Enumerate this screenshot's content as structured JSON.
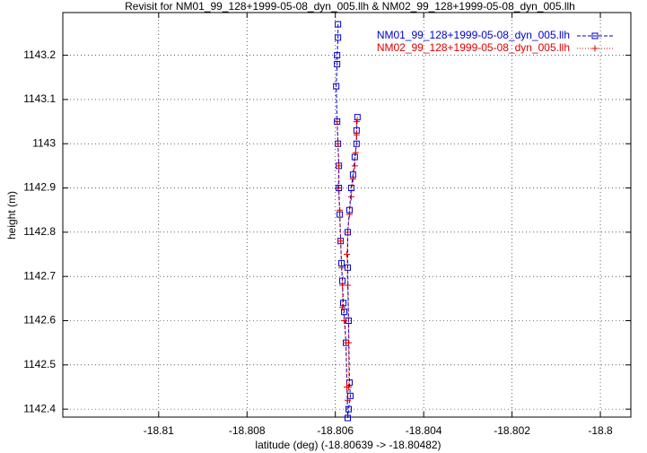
{
  "chart_data": {
    "type": "line",
    "title": "Revisit for NM01_99_128+1999-05-08_dyn_005.llh & NM02_99_128+1999-05-08_dyn_005.llh",
    "x_label": "latitude (deg) (-18.80639 -> -18.80482)",
    "y_label": "height (m)",
    "xlim": [
      -18.81217,
      -18.79931
    ],
    "ylim": [
      1142.382,
      1143.2965
    ],
    "xticks": [
      -18.81,
      -18.808,
      -18.806,
      -18.804,
      -18.802,
      -18.8
    ],
    "yticks": [
      1142.4,
      1142.5,
      1142.6,
      1142.7,
      1142.8,
      1142.9,
      1143,
      1143.1,
      1143.2
    ],
    "grid": true,
    "legend": "upper right",
    "series": [
      {
        "name": "NM01_99_128+1999-05-08_dyn_005.llh",
        "color": "#0000cc",
        "marker": "square",
        "dash": "dashed",
        "x": [
          -18.80594,
          -18.80594,
          -18.80596,
          -18.80596,
          -18.80598,
          -18.80596,
          -18.80594,
          -18.80592,
          -18.80592,
          -18.8059,
          -18.80588,
          -18.80586,
          -18.80584,
          -18.80582,
          -18.8058,
          -18.80576,
          -18.80572,
          -18.8057,
          -18.80566,
          -18.80568,
          -18.8057,
          -18.80572,
          -18.80572,
          -18.80568,
          -18.80564,
          -18.8056,
          -18.80556,
          -18.80552,
          -18.80552,
          -18.8055
        ],
        "values": [
          1143.27,
          1143.24,
          1143.2,
          1143.18,
          1143.13,
          1143.05,
          1143.0,
          1142.95,
          1142.9,
          1142.84,
          1142.78,
          1142.73,
          1142.69,
          1142.64,
          1142.62,
          1142.55,
          1142.38,
          1142.4,
          1142.43,
          1142.46,
          1142.6,
          1142.72,
          1142.8,
          1142.85,
          1142.9,
          1142.93,
          1142.97,
          1143.0,
          1143.03,
          1143.06
        ]
      },
      {
        "name": "NM02_99_128+1999-05-08_dyn_005.llh",
        "color": "#dd0000",
        "marker": "plus",
        "dash": "dotted",
        "x": [
          -18.80596,
          -18.80594,
          -18.80592,
          -18.80594,
          -18.8059,
          -18.80588,
          -18.80586,
          -18.80584,
          -18.80584,
          -18.8058,
          -18.80576,
          -18.80574,
          -18.80572,
          -18.8057,
          -18.8057,
          -18.80572,
          -18.80574,
          -18.80572,
          -18.80568,
          -18.80564,
          -18.8056,
          -18.80556,
          -18.80554,
          -18.80552,
          -18.80552
        ],
        "values": [
          1143.05,
          1143.0,
          1142.95,
          1142.9,
          1142.85,
          1142.78,
          1142.72,
          1142.68,
          1142.63,
          1142.6,
          1142.55,
          1142.45,
          1142.42,
          1142.45,
          1142.55,
          1142.68,
          1142.75,
          1142.8,
          1142.84,
          1142.88,
          1142.92,
          1142.95,
          1142.98,
          1143.02,
          1143.05
        ]
      }
    ]
  }
}
